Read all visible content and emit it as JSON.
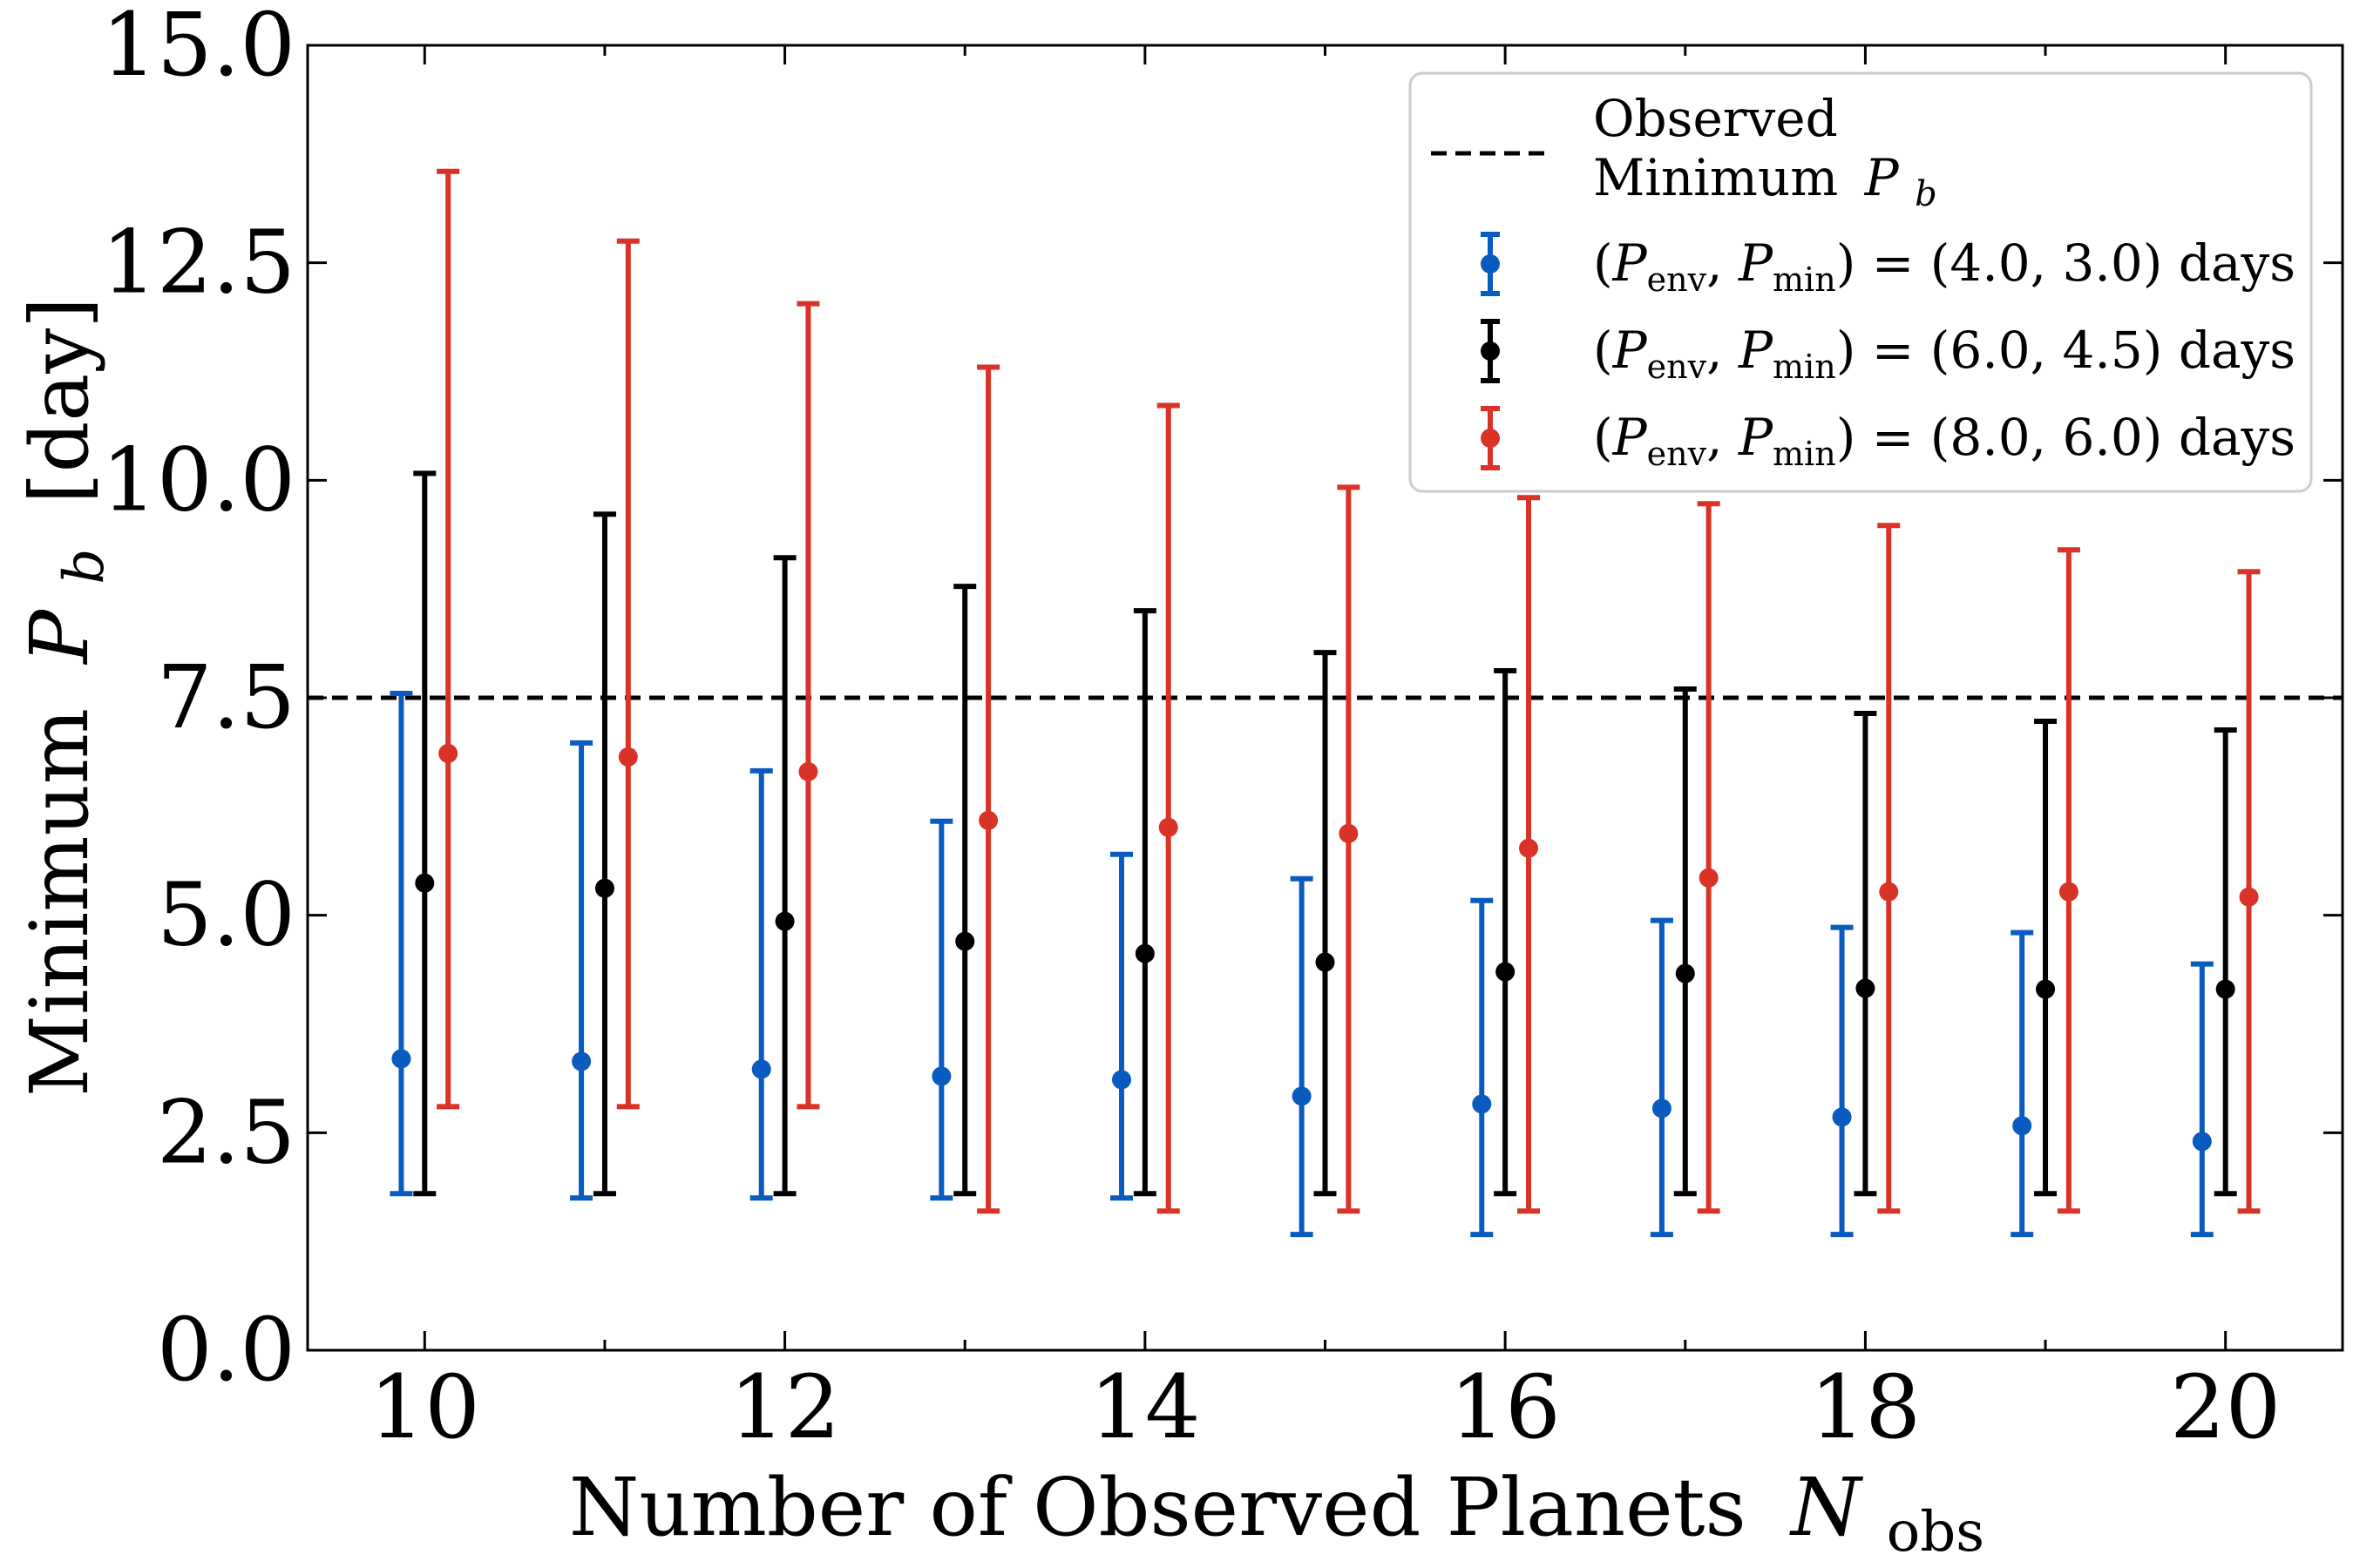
{
  "chart_data": {
    "type": "scatter",
    "title": "",
    "xlabel": "Number of Observed Planets",
    "xlabel_symbol": "N",
    "xlabel_subscript": "obs",
    "ylabel": "Minimum",
    "ylabel_symbol": "P",
    "ylabel_subscript": "b",
    "ylabel_unit": "[day]",
    "xlim": [
      9.35,
      20.65
    ],
    "ylim": [
      0,
      15
    ],
    "x_ticks": [
      "10",
      "12",
      "14",
      "16",
      "18",
      "20"
    ],
    "y_ticks": [
      "0.0",
      "2.5",
      "5.0",
      "7.5",
      "10.0",
      "12.5",
      "15.0"
    ],
    "x": [
      10,
      11,
      12,
      13,
      14,
      15,
      16,
      17,
      18,
      19,
      20
    ],
    "reference_line": {
      "y": 7.5,
      "style": "dashed",
      "label_line1": "Observed",
      "label_line2": "Minimum",
      "label_symbol": "P",
      "label_subscript": "b"
    },
    "legend_position": "top-right",
    "series": [
      {
        "name": "(Penv, Pmin) = (4.0, 3.0) days",
        "legend_text": [
          "(",
          "P",
          "env",
          ", ",
          "P",
          "min",
          ") = (4.0, 3.0) days"
        ],
        "color": "#0a5bbf",
        "x_offset": -0.13,
        "values": [
          3.35,
          3.32,
          3.23,
          3.15,
          3.11,
          2.92,
          2.83,
          2.78,
          2.68,
          2.58,
          2.4
        ],
        "lower": [
          1.8,
          1.75,
          1.75,
          1.75,
          1.75,
          1.33,
          1.33,
          1.33,
          1.33,
          1.33,
          1.33
        ],
        "upper": [
          7.55,
          6.98,
          6.66,
          6.08,
          5.7,
          5.42,
          5.17,
          4.94,
          4.86,
          4.8,
          4.44
        ]
      },
      {
        "name": "(Penv, Pmin) = (6.0, 4.5) days",
        "legend_text": [
          "(",
          "P",
          "env",
          ", ",
          "P",
          "min",
          ") = (6.0, 4.5) days"
        ],
        "color": "#000000",
        "x_offset": 0.0,
        "values": [
          5.37,
          5.31,
          4.93,
          4.7,
          4.56,
          4.46,
          4.35,
          4.33,
          4.16,
          4.15,
          4.15
        ],
        "lower": [
          1.8,
          1.8,
          1.8,
          1.8,
          1.8,
          1.8,
          1.8,
          1.8,
          1.8,
          1.8,
          1.8
        ],
        "upper": [
          10.08,
          9.61,
          9.11,
          8.78,
          8.5,
          8.02,
          7.81,
          7.6,
          7.32,
          7.23,
          7.13
        ]
      },
      {
        "name": "(Penv, Pmin) = (8.0, 6.0) days",
        "legend_text": [
          "(",
          "P",
          "env",
          ", ",
          "P",
          "min",
          ") = (8.0, 6.0) days"
        ],
        "color": "#d93227",
        "x_offset": 0.13,
        "values": [
          6.86,
          6.82,
          6.65,
          6.09,
          6.01,
          5.94,
          5.77,
          5.43,
          5.27,
          5.27,
          5.21
        ],
        "lower": [
          2.8,
          2.8,
          2.8,
          1.6,
          1.6,
          1.6,
          1.6,
          1.6,
          1.6,
          1.6,
          1.6
        ],
        "upper": [
          13.55,
          12.75,
          12.03,
          11.3,
          10.86,
          9.92,
          9.8,
          9.73,
          9.48,
          9.2,
          8.95
        ]
      }
    ]
  }
}
